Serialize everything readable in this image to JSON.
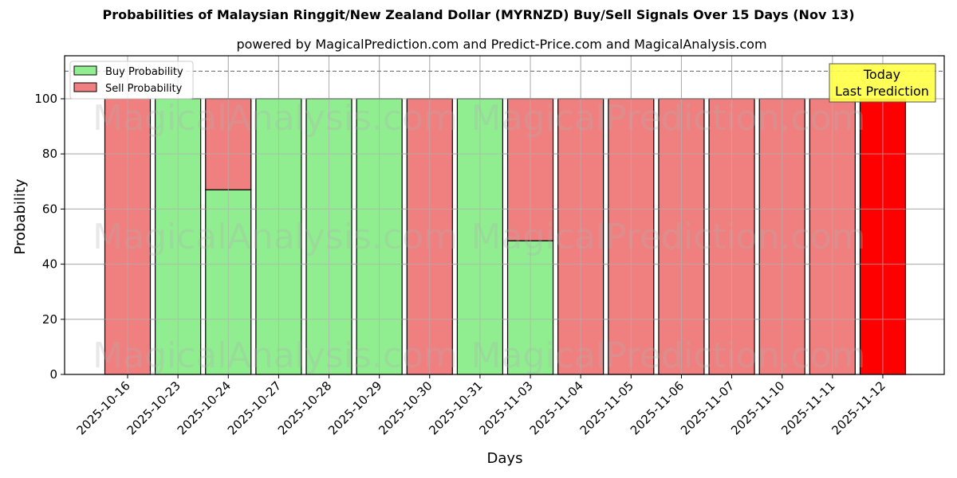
{
  "header": {
    "title": "Probabilities of Malaysian Ringgit/New Zealand Dollar (MYRNZD) Buy/Sell Signals Over 15 Days (Nov 13)",
    "subtitle": "powered by MagicalPrediction.com and Predict-Price.com and MagicalAnalysis.com"
  },
  "legend": {
    "buy_label": "Buy Probability",
    "sell_label": "Sell Probability"
  },
  "annotation": {
    "line1": "Today",
    "line2": "Last Prediction"
  },
  "watermarks": {
    "left": "MagicalAnalysis.com",
    "right": "MagicalPrediction.com"
  },
  "colors": {
    "buy": "#90ee90",
    "sell": "#f08080",
    "today": "#ff0000",
    "annotation_bg": "#ffff44",
    "grid": "#b0b0b0",
    "reference_line": "#808080"
  },
  "chart_data": {
    "type": "bar",
    "stacked": true,
    "title": "Probabilities of Malaysian Ringgit/New Zealand Dollar (MYRNZD) Buy/Sell Signals Over 15 Days (Nov 13)",
    "subtitle": "powered by MagicalPrediction.com and Predict-Price.com and MagicalAnalysis.com",
    "xlabel": "Days",
    "ylabel": "Probability",
    "ylim": [
      0,
      115.6
    ],
    "yticks": [
      0,
      20,
      40,
      60,
      80,
      100
    ],
    "grid": true,
    "legend_position": "upper left",
    "reference_line": {
      "y": 110,
      "style": "dashed"
    },
    "categories": [
      "2025-10-16",
      "2025-10-23",
      "2025-10-24",
      "2025-10-27",
      "2025-10-28",
      "2025-10-29",
      "2025-10-30",
      "2025-10-31",
      "2025-11-03",
      "2025-11-04",
      "2025-11-05",
      "2025-11-06",
      "2025-11-07",
      "2025-11-10",
      "2025-11-11",
      "2025-11-12"
    ],
    "series": [
      {
        "name": "Buy Probability",
        "values": [
          0,
          100,
          67,
          100,
          100,
          100,
          0,
          100,
          48.5,
          0,
          0,
          0,
          0,
          0,
          0,
          0
        ]
      },
      {
        "name": "Sell Probability",
        "values": [
          100,
          0,
          33,
          0,
          0,
          0,
          100,
          0,
          51.5,
          100,
          100,
          100,
          100,
          100,
          100,
          100
        ]
      }
    ],
    "highlighted_last_bar": {
      "category": "2025-11-12",
      "color": "#ff0000",
      "annotation": "Today\nLast Prediction"
    }
  }
}
